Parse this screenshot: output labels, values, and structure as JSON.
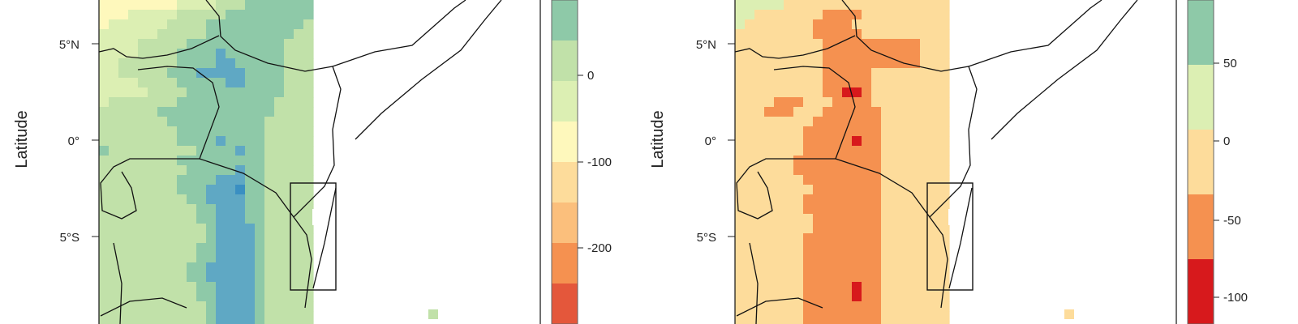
{
  "panels": [
    {
      "ylabel": "Latitude",
      "lat_ticks": [
        "5°N",
        "0°",
        "5°S"
      ],
      "legend": {
        "ticks": [
          "0",
          "-100",
          "-200"
        ],
        "colors": [
          "#8ec9a8",
          "#c1e1a9",
          "#dcefb3",
          "#fef8bc",
          "#fddc9b",
          "#fbbf7c",
          "#f59150",
          "#e4573b"
        ]
      },
      "palette": [
        "#fef8bc",
        "#dcefb3",
        "#c1e1a9",
        "#8ec9a8",
        "#5fa8c4",
        "#3a8fc2"
      ],
      "grid": [
        "0000000011112223333333",
        "0001111122222333333333",
        "0111111222233333333332",
        "1111112222233333333322",
        "1111222223333333333222",
        "1111222233334333333222",
        "1122222233334433333222",
        "1122222333444443333222",
        "1111222233333443333222",
        "1111122223333333333222",
        "1222222233333333332222",
        "2222223333333333332222",
        "2222222333333333322222",
        "2222222233333333322222",
        "2222222233334333322222",
        "3222222222333343322222",
        "2222222233333333322222",
        "2222222223333343322222",
        "2222222233334443322222",
        "2222222233344453322222",
        "2222222223344443322222",
        "2222222222334443322222",
        "2222222222334443322222",
        "2222222222234444322222",
        "2222222222234444322222",
        "2222222222334444322222",
        "2222222222334444322222",
        "2222222223344444322222",
        "2222222223344444322222",
        "2222222222334444322222",
        "2222222222334444322222",
        "2222222222234444322222",
        "2222222222234444322222",
        "2222222222234444322222"
      ]
    },
    {
      "ylabel": "Latitude",
      "lat_ticks": [
        "5°N",
        "0°",
        "5°S"
      ],
      "legend": {
        "ticks": [
          "50",
          "0",
          "-50",
          "-100"
        ],
        "colors": [
          "#8ec9a8",
          "#dcefb3",
          "#fddc9b",
          "#f59150",
          "#d7191c"
        ]
      },
      "palette": [
        "#dcefb3",
        "#fddc9b",
        "#f59150",
        "#d7191c"
      ],
      "grid": [
        "0000011111111111111111",
        "0011111112222111111111",
        "0111111122221111111111",
        "1111111122222111111111",
        "1111111112222222222111",
        "1111111112222222222111",
        "1111111112222222222111",
        "1111111112222211111111",
        "1111111112222211111111",
        "1111111112233211111111",
        "1111222111222211111111",
        "1112221112222221111111",
        "1111111122222221111111",
        "1111111222222221111111",
        "1111111222223221111111",
        "1111111222222221111111",
        "1111112222222221111111",
        "1111112222222221111111",
        "1111111222222221111111",
        "1111111122222221111111",
        "1111111222222221111111",
        "1111111222222221111111",
        "1111111122222221111111",
        "1111111122222221111111",
        "1111111222222221111111",
        "1111111222222221111111",
        "1111111222222221111111",
        "1111111222222221111111",
        "1111111222222221111111",
        "1111111222223221111111",
        "1111111222223221111111",
        "1111111222222221111111",
        "1111111222222221111111",
        "1111111222222221111111"
      ]
    }
  ]
}
